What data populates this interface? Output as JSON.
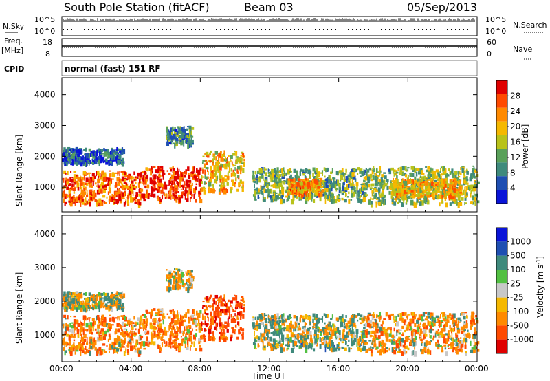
{
  "header": {
    "title": "South Pole Station (fitACF)",
    "beam": "Beam 03",
    "date": "05/Sep/2013"
  },
  "panels": {
    "nsky_label": "N.Sky",
    "nsearch_label": "N.Search",
    "nsky_ticks": [
      "10^5",
      "10^0"
    ],
    "nsearch_ticks": [
      "10^5",
      "10^0"
    ],
    "freq_label": "Freq.",
    "freq_unit": "[MHz]",
    "freq_ticks": [
      "18",
      "8"
    ],
    "nave_label": "Nave",
    "nave_ticks": [
      "60",
      "0"
    ],
    "cpid_label": "CPID",
    "cpid_text": "normal (fast) 151 RF"
  },
  "colors": {
    "power_scale": [
      "#0a14d8",
      "#1f4fb2",
      "#3f8a7c",
      "#5aa05a",
      "#b8c21a",
      "#f5b800",
      "#ff8a00",
      "#ff4a00",
      "#e00000"
    ],
    "velocity_scale": [
      "#e00000",
      "#ff4a00",
      "#ff8a00",
      "#f5b800",
      "#c8c8c8",
      "#52c042",
      "#3f8a7c",
      "#1f4fb2",
      "#0a14d8"
    ]
  },
  "chart_data": [
    {
      "type": "heatmap",
      "panel": "power",
      "ylabel": "Slant Range [km]",
      "xlabel": "Time UT",
      "x_ticks": [
        "00:00",
        "04:00",
        "08:00",
        "12:00",
        "16:00",
        "20:00",
        "00:00"
      ],
      "y_ticks": [
        1000,
        2000,
        3000,
        4000
      ],
      "ylim": [
        200,
        4550
      ],
      "xlim_hours": [
        0,
        24
      ],
      "colorbar_label": "Power [dB]",
      "colorbar_ticks": [
        "4",
        "8",
        "12",
        "16",
        "20",
        "24",
        "28"
      ],
      "clim": [
        0,
        32
      ],
      "echo_regions": [
        {
          "t_start": 0.0,
          "t_end": 4.5,
          "range_low": 500,
          "range_high": 1550,
          "level": 26
        },
        {
          "t_start": 4.5,
          "t_end": 8.0,
          "range_low": 600,
          "range_high": 1700,
          "level": 28
        },
        {
          "t_start": 8.0,
          "t_end": 10.5,
          "range_low": 900,
          "range_high": 2200,
          "level": 20
        },
        {
          "t_start": 0.0,
          "t_end": 3.5,
          "range_low": 1800,
          "range_high": 2300,
          "level": 6
        },
        {
          "t_start": 11.0,
          "t_end": 17.5,
          "range_low": 600,
          "range_high": 1650,
          "level": 12
        },
        {
          "t_start": 13.0,
          "t_end": 15.0,
          "range_low": 800,
          "range_high": 1300,
          "level": 22
        },
        {
          "t_start": 17.5,
          "t_end": 24.0,
          "range_low": 500,
          "range_high": 1700,
          "level": 14
        },
        {
          "t_start": 19.0,
          "t_end": 23.0,
          "range_low": 700,
          "range_high": 1300,
          "level": 20
        },
        {
          "t_start": 6.0,
          "t_end": 7.5,
          "range_low": 2400,
          "range_high": 3000,
          "level": 10
        }
      ]
    },
    {
      "type": "heatmap",
      "panel": "velocity",
      "ylabel": "Slant Range [km]",
      "xlabel": "Time UT",
      "x_ticks": [
        "00:00",
        "04:00",
        "08:00",
        "12:00",
        "16:00",
        "20:00",
        "00:00"
      ],
      "y_ticks": [
        1000,
        2000,
        3000,
        4000
      ],
      "ylim": [
        200,
        4550
      ],
      "xlim_hours": [
        0,
        24
      ],
      "colorbar_label": "Velocity [m s^-1]",
      "colorbar_ticks": [
        "-1000",
        "-500",
        "-100",
        "-25",
        "25",
        "100",
        "500",
        "1000"
      ],
      "echo_regions": [
        {
          "t_start": 0.0,
          "t_end": 4.5,
          "range_low": 500,
          "range_high": 1600,
          "velocity": -300
        },
        {
          "t_start": 4.5,
          "t_end": 8.0,
          "range_low": 600,
          "range_high": 1800,
          "velocity": -400
        },
        {
          "t_start": 8.0,
          "t_end": 10.5,
          "range_low": 900,
          "range_high": 2200,
          "velocity": -700
        },
        {
          "t_start": 0.0,
          "t_end": 3.5,
          "range_low": 1800,
          "range_high": 2300,
          "velocity": 0
        },
        {
          "t_start": 11.0,
          "t_end": 17.5,
          "range_low": 600,
          "range_high": 1650,
          "velocity": 60
        },
        {
          "t_start": 17.5,
          "t_end": 24.0,
          "range_low": 500,
          "range_high": 1700,
          "velocity": -250
        },
        {
          "t_start": 6.0,
          "t_end": 7.5,
          "range_low": 2400,
          "range_high": 3000,
          "velocity": -80
        }
      ]
    }
  ],
  "axis_title": "Time UT"
}
